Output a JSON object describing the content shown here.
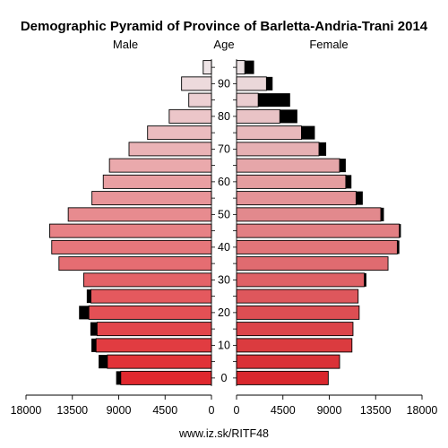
{
  "chart_data": {
    "type": "bar",
    "orientation": "horizontal-pyramid",
    "title": "Demographic Pyramid of Province of Barletta-Andria-Trani 2014",
    "left_label": "Male",
    "center_label": "Age",
    "right_label": "Female",
    "footer": "www.iz.sk/RITF48",
    "x_ticks": [
      "18000",
      "13500",
      "9000",
      "4500",
      "0",
      "4500",
      "9000",
      "13500",
      "18000"
    ],
    "xlim": [
      0,
      18000
    ],
    "age_ticks": [
      "0",
      "10",
      "20",
      "30",
      "40",
      "50",
      "60",
      "70",
      "80",
      "90"
    ],
    "age_groups": [
      "0-4",
      "5-9",
      "10-14",
      "15-19",
      "20-24",
      "25-29",
      "30-34",
      "35-39",
      "40-44",
      "45-49",
      "50-54",
      "55-59",
      "60-64",
      "65-69",
      "70-74",
      "75-79",
      "80-84",
      "85-89",
      "90-94",
      "95+"
    ],
    "male": [
      8800,
      10100,
      11200,
      11100,
      11900,
      11700,
      12400,
      14800,
      15500,
      15700,
      13900,
      11600,
      10500,
      9900,
      8000,
      6200,
      4100,
      2200,
      2900,
      800
    ],
    "male_excess": [
      450,
      850,
      450,
      650,
      950,
      400,
      0,
      0,
      0,
      0,
      0,
      0,
      0,
      0,
      0,
      0,
      0,
      0,
      0,
      0
    ],
    "female": [
      8900,
      10000,
      11200,
      11300,
      11900,
      11800,
      12400,
      14700,
      15600,
      15800,
      14000,
      11600,
      10600,
      10000,
      8000,
      6300,
      4200,
      2100,
      2900,
      800
    ],
    "female_excess": [
      0,
      0,
      0,
      0,
      0,
      0,
      200,
      0,
      200,
      150,
      300,
      650,
      550,
      600,
      700,
      1300,
      1700,
      3100,
      600,
      900
    ],
    "colors": {
      "accent": "#e0282e",
      "excess": "#000000",
      "outline": "#000000"
    }
  }
}
